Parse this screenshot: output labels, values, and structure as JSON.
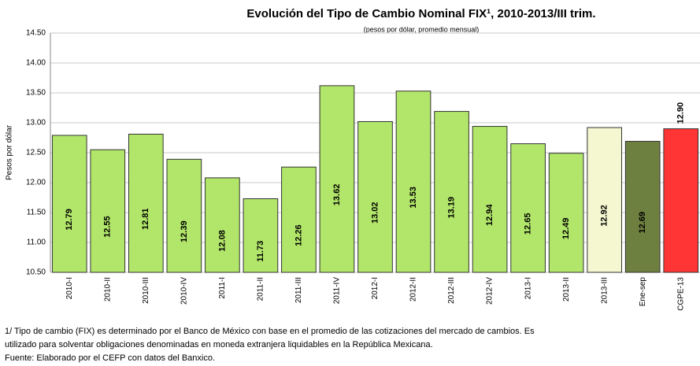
{
  "chart_data": {
    "type": "bar",
    "title": "Evolución del Tipo de Cambio Nominal FIX¹, 2010-2013/III trim.",
    "subtitle": "(pesos por dólar, promedio mensual)",
    "y_label": "Pesos por dólar",
    "categories": [
      "2010-I",
      "2010-II",
      "2010-III",
      "2010-IV",
      "2011-I",
      "2011-II",
      "2011-III",
      "2011-IV",
      "2012-I",
      "2012-II",
      "2012-III",
      "2012-IV",
      "2013-I",
      "2013-II",
      "2013-III",
      "Ene-sep",
      "CGPE-13"
    ],
    "values": [
      12.79,
      12.55,
      12.81,
      12.39,
      12.08,
      11.73,
      12.26,
      13.62,
      13.02,
      13.53,
      13.19,
      12.94,
      12.65,
      12.49,
      12.92,
      12.69,
      12.9
    ],
    "value_labels": [
      "12.79",
      "12.55",
      "12.81",
      "12.39",
      "12.08",
      "11.73",
      "12.26",
      "13.62",
      "13.02",
      "13.53",
      "13.19",
      "12.94",
      "12.65",
      "12.49",
      "12.92",
      "12.69",
      "12.90"
    ],
    "colors": [
      "#b2e66a",
      "#b2e66a",
      "#b2e66a",
      "#b2e66a",
      "#b2e66a",
      "#b2e66a",
      "#b2e66a",
      "#b2e66a",
      "#b2e66a",
      "#b2e66a",
      "#b2e66a",
      "#b2e66a",
      "#b2e66a",
      "#b2e66a",
      "#f4f7cf",
      "#6e8040",
      "#ff3434"
    ],
    "ylim": [
      10.5,
      14.5
    ],
    "yticks": [
      {
        "value": 10.5,
        "label": "10.50"
      },
      {
        "value": 11,
        "label": "11.00"
      },
      {
        "value": 11.5,
        "label": "11.50"
      },
      {
        "value": 12,
        "label": "12.00"
      },
      {
        "value": 12.5,
        "label": "12.50"
      },
      {
        "value": 13,
        "label": "13.00"
      },
      {
        "value": 13.5,
        "label": "13.50"
      },
      {
        "value": 14,
        "label": "14.00"
      },
      {
        "value": 14.5,
        "label": "14.50"
      }
    ],
    "grid": true,
    "notes": [
      "1/  Tipo de cambio (FIX) es determinado por el Banco de México con base en el promedio de las cotizaciones del mercado de cambios. Es",
      "utilizado para solventar obligaciones denominadas en moneda extranjera liquidables en la República Mexicana.",
      "Fuente: Elaborado por el CEFP con datos del Banxico."
    ]
  }
}
